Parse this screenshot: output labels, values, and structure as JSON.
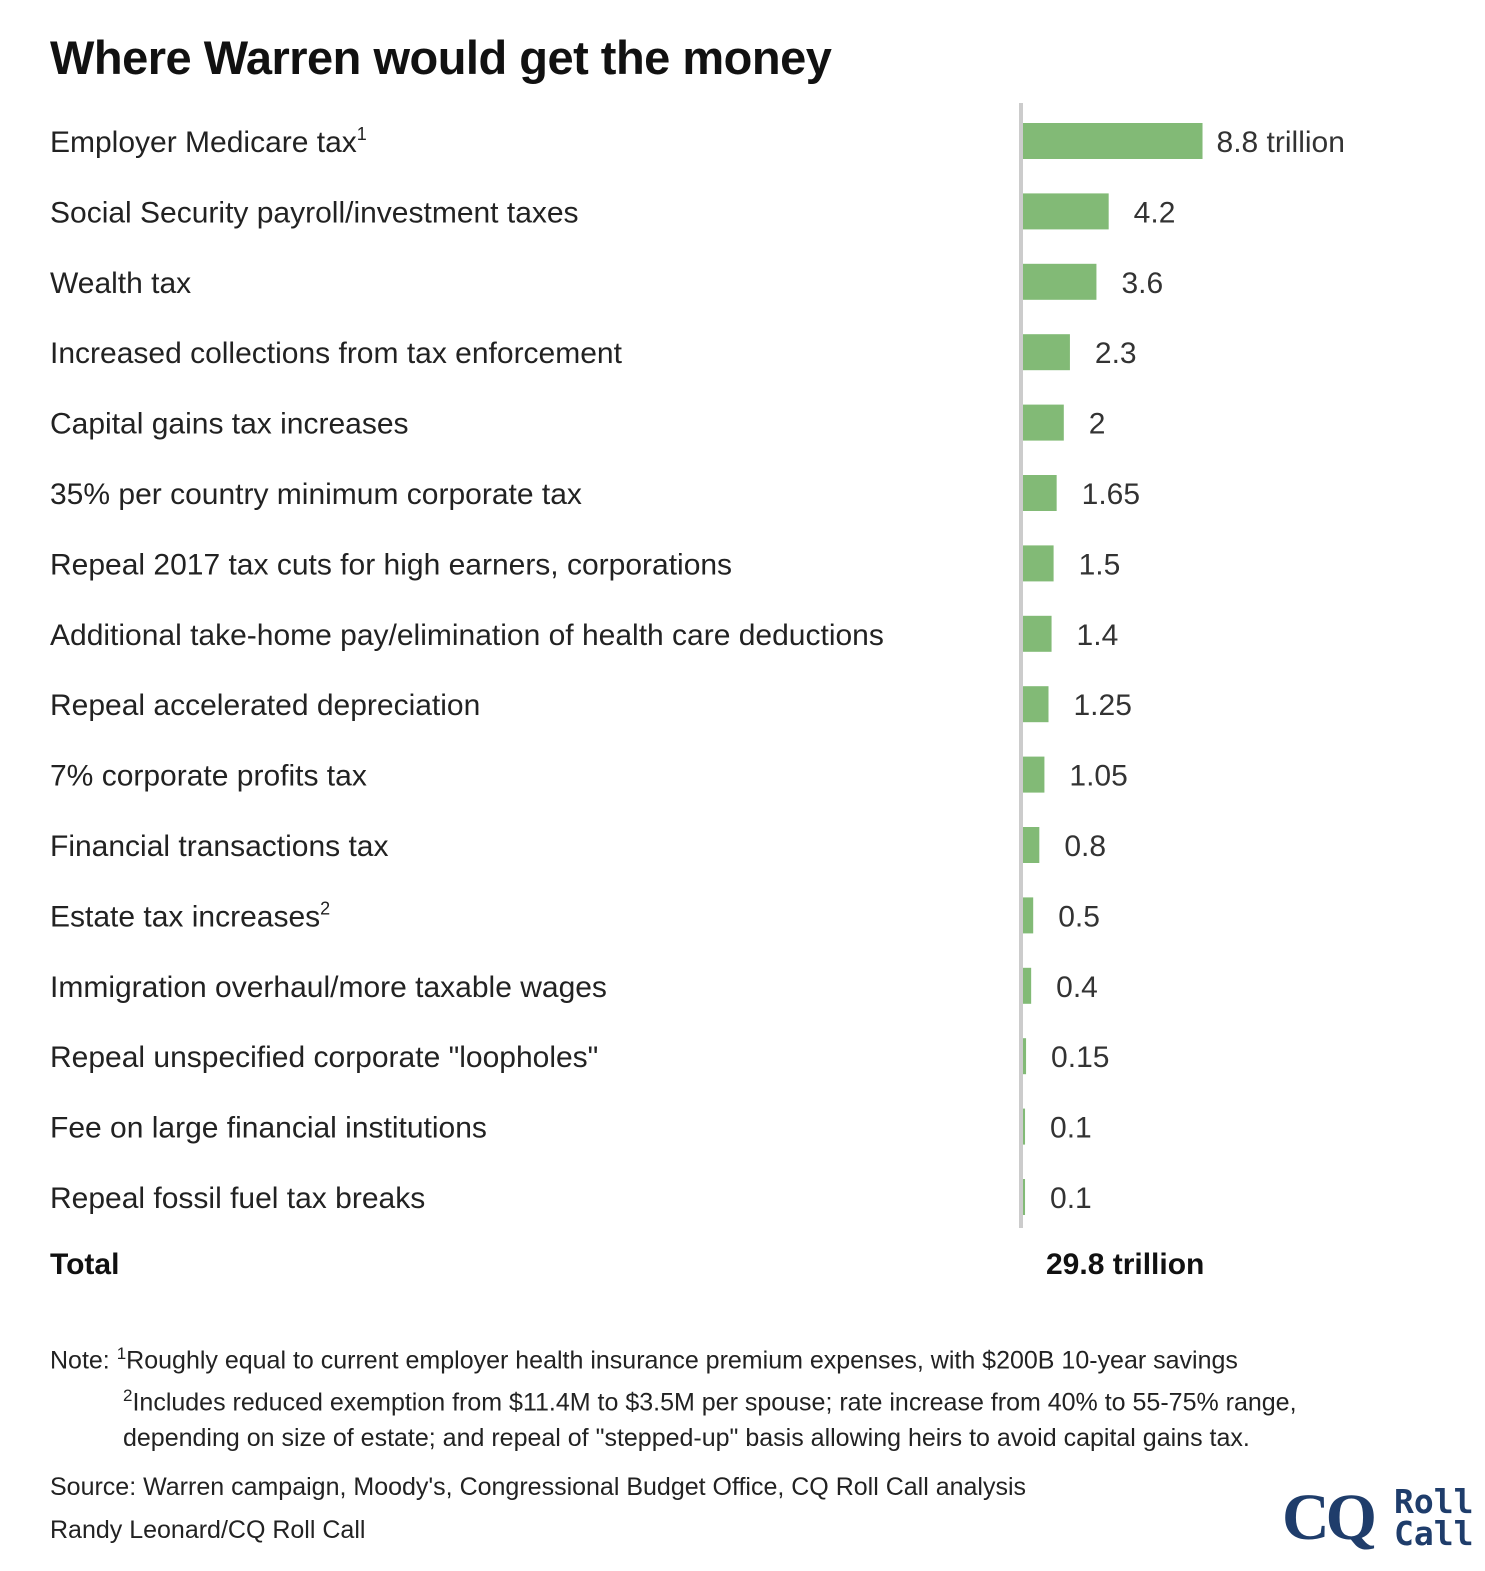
{
  "title": "Where Warren would get the money",
  "chart_data": {
    "type": "bar",
    "orientation": "horizontal",
    "title": "Where Warren would get the money",
    "unit": "trillion",
    "categories": [
      "Employer Medicare tax",
      "Social Security payroll/investment taxes",
      "Wealth tax",
      "Increased collections from tax enforcement",
      "Capital gains tax increases",
      "35% per country minimum corporate tax",
      "Repeal 2017 tax cuts for high earners, corporations",
      "Additional take-home pay/elimination of health care deductions",
      "Repeal accelerated depreciation",
      "7% corporate profits tax",
      "Financial transactions tax",
      "Estate tax increases",
      "Immigration overhaul/more taxable wages",
      "Repeal unspecified corporate \"loopholes\"",
      "Fee on large financial institutions",
      "Repeal fossil fuel tax breaks"
    ],
    "superscripts": [
      "1",
      "",
      "",
      "",
      "",
      "",
      "",
      "",
      "",
      "",
      "",
      "2",
      "",
      "",
      "",
      ""
    ],
    "values": [
      8.8,
      4.2,
      3.6,
      2.3,
      2,
      1.65,
      1.5,
      1.4,
      1.25,
      1.05,
      0.8,
      0.5,
      0.4,
      0.15,
      0.1,
      0.1
    ],
    "value_labels": [
      "8.8 trillion",
      "4.2",
      "3.6",
      "2.3",
      "2",
      "1.65",
      "1.5",
      "1.4",
      "1.25",
      "1.05",
      "0.8",
      "0.5",
      "0.4",
      "0.15",
      "0.1",
      "0.1"
    ],
    "bar_color": "#82ba76",
    "axis_color": "#cccccc",
    "grid": false,
    "legend": "none"
  },
  "total": {
    "label": "Total",
    "value": "29.8 trillion"
  },
  "notes": {
    "prefix": "Note: ",
    "note1_sup": "1",
    "note1": "Roughly equal to current employer health insurance premium expenses, with $200B 10-year savings",
    "note2_sup": "2",
    "note2_line1": "Includes reduced exemption from $11.4M to $3.5M per spouse; rate increase from 40% to 55-75% range,",
    "note2_line2": "depending on size of estate; and repeal of \"stepped-up\" basis allowing heirs to avoid capital gains tax."
  },
  "source": "Source: Warren campaign, Moody's, Congressional Budget Office, CQ Roll Call analysis",
  "credit": "Randy Leonard/CQ Roll Call",
  "logo": {
    "cq": "CQ",
    "roll": "Roll",
    "call": "Call",
    "color": "#1f3d6b"
  }
}
